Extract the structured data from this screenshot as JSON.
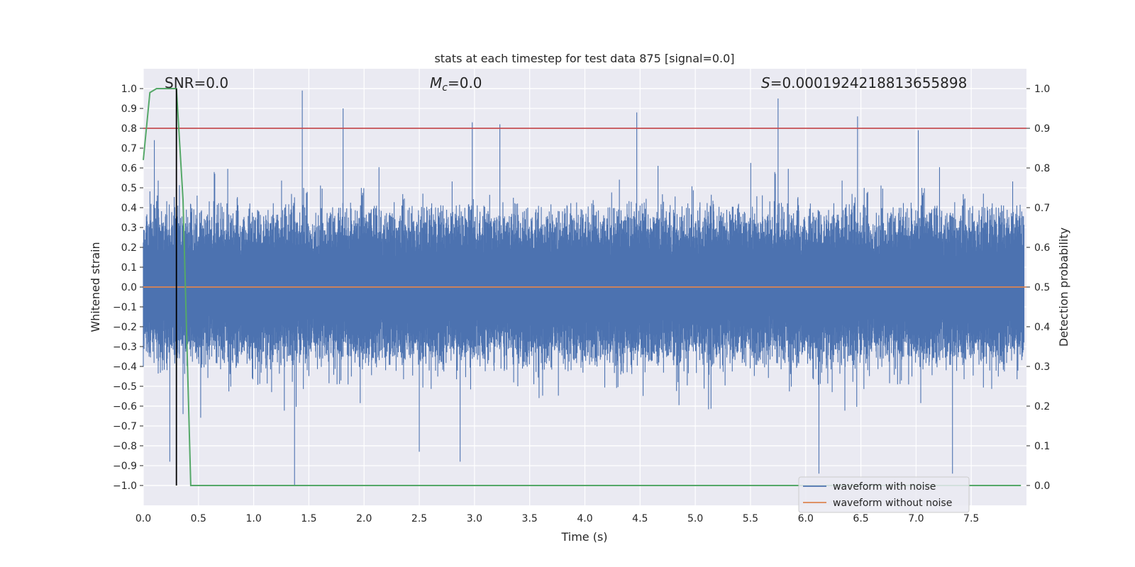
{
  "chart_data": {
    "type": "line",
    "title": "stats at each timestep for test data 875 [signal=0.0]",
    "xlabel": "Time (s)",
    "ylabel": "Whitened strain",
    "ylabel_right": "Detection probability",
    "xlim": [
      0.0,
      8.0
    ],
    "ylim": [
      -1.1,
      1.1
    ],
    "ylim_right": [
      -0.05,
      1.05
    ],
    "x_ticks": [
      "0.0",
      "0.5",
      "1.0",
      "1.5",
      "2.0",
      "2.5",
      "3.0",
      "3.5",
      "4.0",
      "4.5",
      "5.0",
      "5.5",
      "6.0",
      "6.5",
      "7.0",
      "7.5"
    ],
    "y_ticks": [
      "1.0",
      "0.9",
      "0.8",
      "0.7",
      "0.6",
      "0.5",
      "0.4",
      "0.3",
      "0.2",
      "0.1",
      "0.0",
      "−0.1",
      "−0.2",
      "−0.3",
      "−0.4",
      "−0.5",
      "−0.6",
      "−0.7",
      "−0.8",
      "−0.9",
      "−1.0"
    ],
    "y_ticks_right": [
      "1.0",
      "0.9",
      "0.8",
      "0.7",
      "0.6",
      "0.5",
      "0.4",
      "0.3",
      "0.2",
      "0.1",
      "0.0"
    ],
    "annotations": {
      "snr": "SNR=0.0",
      "mc_symbol": "M",
      "mc_sub": "c",
      "mc_value": "=0.0",
      "s_symbol": "S",
      "s_value": "=0.0001924218813655898"
    },
    "legend": {
      "position": "lower-right",
      "entries": [
        "waveform with noise",
        "waveform without noise"
      ]
    },
    "series": [
      {
        "name": "waveform with noise",
        "color": "#4c72b0",
        "axis": "left",
        "description": "dense noise, typical envelope about +/-0.45 with spikes",
        "envelope": 0.45,
        "spikes": [
          {
            "x": 1.44,
            "y": 0.99
          },
          {
            "x": 1.81,
            "y": 0.9
          },
          {
            "x": 2.98,
            "y": 0.83
          },
          {
            "x": 3.23,
            "y": 0.82
          },
          {
            "x": 4.47,
            "y": 0.88
          },
          {
            "x": 5.75,
            "y": 0.95
          },
          {
            "x": 6.47,
            "y": 0.86
          },
          {
            "x": 7.02,
            "y": 0.79
          },
          {
            "x": 0.1,
            "y": 0.74
          },
          {
            "x": 1.37,
            "y": -1.0
          },
          {
            "x": 6.12,
            "y": -0.94
          },
          {
            "x": 7.33,
            "y": -0.94
          },
          {
            "x": 2.87,
            "y": -0.88
          },
          {
            "x": 0.24,
            "y": -0.88
          },
          {
            "x": 2.5,
            "y": -0.83
          }
        ]
      },
      {
        "name": "waveform without noise",
        "color": "#dd8452",
        "axis": "left",
        "x": [
          0.0,
          8.0
        ],
        "y": [
          0.0,
          0.0
        ]
      },
      {
        "name": "detection probability",
        "color": "#55a868",
        "axis": "right",
        "x": [
          0.0,
          0.06,
          0.12,
          0.3,
          0.36,
          0.43,
          7.95
        ],
        "y": [
          0.82,
          0.99,
          1.0,
          1.0,
          0.72,
          0.0,
          0.0
        ]
      }
    ],
    "threshold": {
      "value": 0.9,
      "axis": "right",
      "color": "#c44e52"
    },
    "vline": {
      "x": 0.3,
      "y_from": -1.0,
      "y_to": 1.0,
      "color": "#000000"
    }
  }
}
